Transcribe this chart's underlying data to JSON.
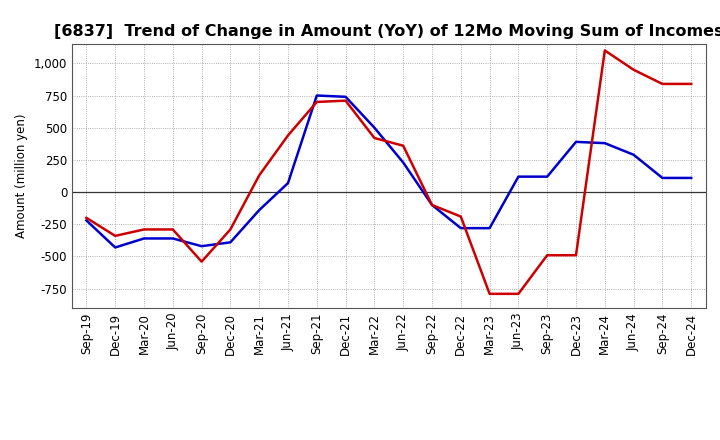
{
  "title": "[6837]  Trend of Change in Amount (YoY) of 12Mo Moving Sum of Incomes",
  "ylabel": "Amount (million yen)",
  "x_labels": [
    "Sep-19",
    "Dec-19",
    "Mar-20",
    "Jun-20",
    "Sep-20",
    "Dec-20",
    "Mar-21",
    "Jun-21",
    "Sep-21",
    "Dec-21",
    "Mar-22",
    "Jun-22",
    "Sep-22",
    "Dec-22",
    "Mar-23",
    "Jun-23",
    "Sep-23",
    "Dec-23",
    "Mar-24",
    "Jun-24",
    "Sep-24",
    "Dec-24"
  ],
  "ordinary_income": [
    -220,
    -430,
    -360,
    -360,
    -420,
    -390,
    -140,
    70,
    750,
    740,
    500,
    230,
    -100,
    -280,
    -280,
    120,
    120,
    390,
    380,
    290,
    110,
    110
  ],
  "net_income": [
    -200,
    -340,
    -290,
    -290,
    -540,
    -290,
    130,
    440,
    700,
    710,
    420,
    360,
    -100,
    -190,
    -790,
    -790,
    -490,
    -490,
    1100,
    950,
    840,
    840
  ],
  "ordinary_color": "#0000cc",
  "net_color": "#cc0000",
  "ylim": [
    -900,
    1150
  ],
  "yticks": [
    -750,
    -500,
    -250,
    0,
    250,
    500,
    750,
    1000
  ],
  "background_color": "#ffffff",
  "grid_color": "#999999",
  "line_width": 1.8,
  "title_fontsize": 11.5,
  "legend_fontsize": 9.5,
  "axis_fontsize": 8.5
}
